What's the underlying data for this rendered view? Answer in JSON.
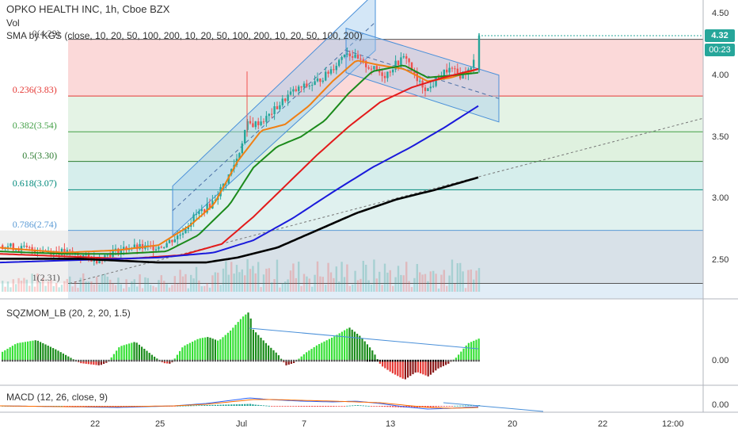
{
  "header": {
    "symbol_title": "OPKO HEALTH INC, 1h, Cboe BZX",
    "vol_label": "Vol",
    "sma_legend": "SMA by KGS (close, 10, 20, 50, 100, 200, 10, 20, 50, 100, 200, 10, 20, 50, 100, 200)"
  },
  "price_axis": {
    "ticks": [
      "4.50",
      "4.00",
      "3.50",
      "3.00",
      "2.50"
    ],
    "last_price": "4.32",
    "countdown": "00:23"
  },
  "time_axis": {
    "ticks": [
      "22",
      "25",
      "Jul",
      "7",
      "13",
      "20",
      "22",
      "12:00"
    ]
  },
  "fib_levels": [
    {
      "label": "0(4.29)",
      "value": 4.29,
      "color": "#555555"
    },
    {
      "label": "0.236(3.83)",
      "value": 3.83,
      "color": "#e53935"
    },
    {
      "label": "0.382(3.54)",
      "value": 3.54,
      "color": "#43a047"
    },
    {
      "label": "0.5(3.30)",
      "value": 3.3,
      "color": "#2e7d32"
    },
    {
      "label": "0.618(3.07)",
      "value": 3.07,
      "color": "#00897b"
    },
    {
      "label": "0.786(2.74)",
      "value": 2.74,
      "color": "#5b9bd5"
    },
    {
      "label": "1(2.31)",
      "value": 2.31,
      "color": "#555555"
    }
  ],
  "sqz_panel": {
    "legend": "SQZMOM_LB (20, 2, 20, 1.5)",
    "axis_tick": "0.00"
  },
  "macd_panel": {
    "legend": "MACD (12, 26, close, 9)",
    "axis_tick": "0.00"
  },
  "colors": {
    "up_candle": "#26a69a",
    "down_candle": "#ef5350",
    "sma_black": "#000000",
    "sma_blue": "#1a1adb",
    "sma_red": "#e31a1a",
    "sma_green": "#1b8a1b",
    "sma_orange": "#f07f14",
    "sqz_bright_green": "#38e038",
    "sqz_dark_green": "#1b8c1b",
    "sqz_red": "#e53935",
    "channel_fill": "#9fc9ee",
    "price_tag": "#26a69a"
  },
  "chart_data": {
    "type": "candlestick",
    "title": "OPKO HEALTH INC, 1h, Cboe BZX",
    "y_range": [
      2.17,
      4.67
    ],
    "y_ticks": [
      2.5,
      3.0,
      3.5,
      4.0,
      4.5
    ],
    "x_ticks": [
      "22",
      "25",
      "Jul",
      "7",
      "13",
      "20",
      "22",
      "12:00"
    ],
    "last_price": 4.32,
    "close_path": [
      [
        0,
        2.62
      ],
      [
        20,
        2.6
      ],
      [
        45,
        2.58
      ],
      [
        70,
        2.57
      ],
      [
        95,
        2.55
      ],
      [
        120,
        2.5
      ],
      [
        140,
        2.56
      ],
      [
        160,
        2.6
      ],
      [
        185,
        2.6
      ],
      [
        205,
        2.62
      ],
      [
        225,
        2.7
      ],
      [
        245,
        2.86
      ],
      [
        265,
        2.95
      ],
      [
        285,
        3.15
      ],
      [
        300,
        3.35
      ],
      [
        310,
        3.6
      ],
      [
        320,
        3.6
      ],
      [
        335,
        3.65
      ],
      [
        350,
        3.75
      ],
      [
        365,
        3.85
      ],
      [
        380,
        3.9
      ],
      [
        395,
        3.93
      ],
      [
        410,
        4.0
      ],
      [
        425,
        4.1
      ],
      [
        435,
        4.2
      ],
      [
        445,
        4.15
      ],
      [
        455,
        4.1
      ],
      [
        470,
        4.05
      ],
      [
        485,
        4.0
      ],
      [
        500,
        4.1
      ],
      [
        512,
        4.15
      ],
      [
        525,
        3.95
      ],
      [
        540,
        3.88
      ],
      [
        552,
        3.98
      ],
      [
        565,
        4.05
      ],
      [
        580,
        4.0
      ],
      [
        595,
        4.05
      ],
      [
        604,
        4.32
      ]
    ],
    "fib_retracement": {
      "high": 4.29,
      "low": 2.31
    },
    "sma_series": [
      {
        "name": "SMA 10",
        "color": "#f07f14",
        "points": [
          [
            0,
            2.6
          ],
          [
            80,
            2.56
          ],
          [
            150,
            2.58
          ],
          [
            200,
            2.62
          ],
          [
            240,
            2.78
          ],
          [
            270,
            2.95
          ],
          [
            300,
            3.3
          ],
          [
            330,
            3.55
          ],
          [
            360,
            3.6
          ],
          [
            390,
            3.75
          ],
          [
            420,
            3.95
          ],
          [
            450,
            4.12
          ],
          [
            480,
            4.08
          ],
          [
            510,
            4.05
          ],
          [
            540,
            3.95
          ],
          [
            570,
            3.98
          ],
          [
            604,
            4.05
          ]
        ]
      },
      {
        "name": "SMA 20",
        "color": "#1b8a1b",
        "points": [
          [
            0,
            2.57
          ],
          [
            80,
            2.55
          ],
          [
            150,
            2.55
          ],
          [
            210,
            2.57
          ],
          [
            250,
            2.7
          ],
          [
            290,
            2.95
          ],
          [
            320,
            3.25
          ],
          [
            350,
            3.42
          ],
          [
            380,
            3.5
          ],
          [
            410,
            3.63
          ],
          [
            440,
            3.85
          ],
          [
            470,
            4.03
          ],
          [
            510,
            4.08
          ],
          [
            540,
            3.98
          ],
          [
            575,
            4.0
          ],
          [
            604,
            4.02
          ]
        ]
      },
      {
        "name": "SMA 50",
        "color": "#e31a1a",
        "points": [
          [
            0,
            2.55
          ],
          [
            80,
            2.53
          ],
          [
            160,
            2.51
          ],
          [
            230,
            2.54
          ],
          [
            280,
            2.63
          ],
          [
            320,
            2.85
          ],
          [
            360,
            3.1
          ],
          [
            400,
            3.35
          ],
          [
            440,
            3.58
          ],
          [
            480,
            3.78
          ],
          [
            520,
            3.9
          ],
          [
            560,
            3.98
          ],
          [
            604,
            4.05
          ]
        ]
      },
      {
        "name": "SMA 100",
        "color": "#1a1adb",
        "points": [
          [
            0,
            2.48
          ],
          [
            100,
            2.5
          ],
          [
            200,
            2.52
          ],
          [
            270,
            2.56
          ],
          [
            320,
            2.66
          ],
          [
            370,
            2.84
          ],
          [
            420,
            3.05
          ],
          [
            470,
            3.25
          ],
          [
            520,
            3.42
          ],
          [
            560,
            3.57
          ],
          [
            604,
            3.75
          ]
        ]
      },
      {
        "name": "SMA 200",
        "color": "#000000",
        "points": [
          [
            0,
            2.51
          ],
          [
            100,
            2.51
          ],
          [
            200,
            2.48
          ],
          [
            260,
            2.48
          ],
          [
            300,
            2.52
          ],
          [
            350,
            2.6
          ],
          [
            400,
            2.74
          ],
          [
            450,
            2.88
          ],
          [
            500,
            2.99
          ],
          [
            550,
            3.07
          ],
          [
            604,
            3.17
          ]
        ]
      }
    ],
    "sqz_histogram_note": "momentum bars oscillating around 0.00",
    "macd_note": "MACD and signal lines around 0.00"
  }
}
